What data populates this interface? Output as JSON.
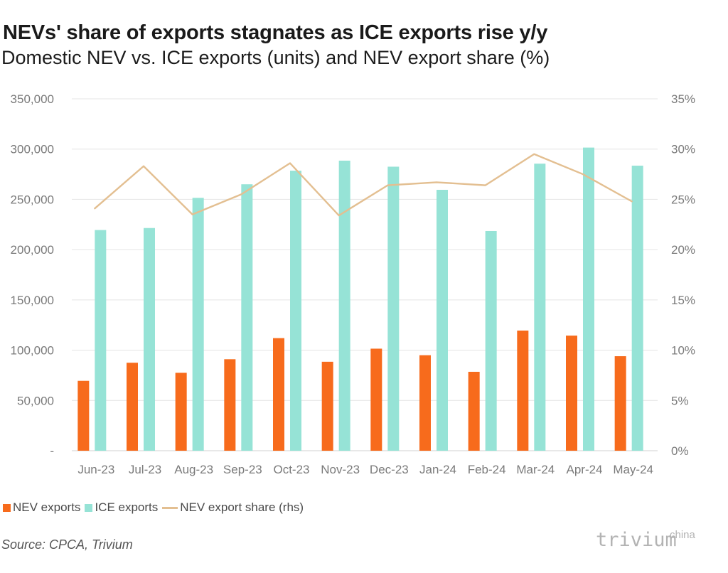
{
  "chart_data": {
    "type": "bar",
    "title": "NEVs' share of exports stagnates as ICE exports rise y/y",
    "subtitle": "Domestic NEV vs. ICE exports (units) and NEV export share (%)",
    "categories": [
      "Jun-23",
      "Jul-23",
      "Aug-23",
      "Sep-23",
      "Oct-23",
      "Nov-23",
      "Dec-23",
      "Jan-24",
      "Feb-24",
      "Mar-24",
      "Apr-24",
      "May-24"
    ],
    "series": [
      {
        "name": "NEV exports",
        "type": "bar",
        "axis": "left",
        "color": "#f76b1c",
        "values": [
          69500,
          87500,
          77500,
          91000,
          112000,
          88500,
          101500,
          95000,
          78500,
          119500,
          114500,
          94000
        ]
      },
      {
        "name": "ICE exports",
        "type": "bar",
        "axis": "left",
        "color": "#96e3d6",
        "values": [
          219500,
          221500,
          251500,
          265000,
          278500,
          288500,
          282500,
          259500,
          218500,
          285500,
          301500,
          283500
        ]
      },
      {
        "name": "NEV export share (rhs)",
        "type": "line",
        "axis": "right",
        "color": "#e3bf91",
        "values": [
          24.1,
          28.3,
          23.5,
          25.5,
          28.6,
          23.4,
          26.4,
          26.7,
          26.4,
          29.5,
          27.5,
          24.8
        ]
      }
    ],
    "y_left": {
      "min": 0,
      "max": 350000,
      "ticks": [
        0,
        50000,
        100000,
        150000,
        200000,
        250000,
        300000,
        350000
      ],
      "tick_labels": [
        "-",
        "50,000",
        "100,000",
        "150,000",
        "200,000",
        "250,000",
        "300,000",
        "350,000"
      ]
    },
    "y_right": {
      "min": 0,
      "max": 35,
      "ticks": [
        0,
        5,
        10,
        15,
        20,
        25,
        30,
        35
      ],
      "tick_labels": [
        "0%",
        "5%",
        "10%",
        "15%",
        "20%",
        "25%",
        "30%",
        "35%"
      ]
    },
    "grid": true,
    "legend_position": "bottom-left"
  },
  "footer": {
    "source": "Source: CPCA, Trivium",
    "brand": "trivium",
    "brand_sup": "china"
  },
  "colors": {
    "nev": "#f76b1c",
    "ice": "#96e3d6",
    "share": "#e3bf91",
    "grid": "#e3e3e3"
  }
}
